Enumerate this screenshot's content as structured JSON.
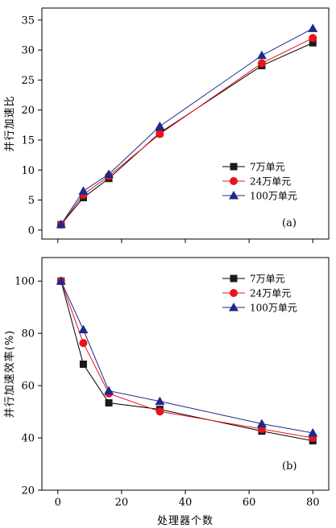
{
  "chart_data": [
    {
      "type": "line",
      "panel_label": "(a)",
      "ylabel": "并行加速比",
      "xlabel": "",
      "x": [
        1,
        8,
        16,
        32,
        64,
        80
      ],
      "xlim": [
        -5,
        85
      ],
      "ylim": [
        -1.5,
        37
      ],
      "xticks": [
        0,
        20,
        40,
        60,
        80
      ],
      "xtick_labels": [
        "",
        "",
        "",
        "",
        ""
      ],
      "yticks": [
        0,
        5,
        10,
        15,
        20,
        25,
        30,
        35
      ],
      "ytick_labels": [
        "0",
        "5",
        "10",
        "15",
        "20",
        "25",
        "30",
        "35"
      ],
      "legend_position": "bottom-right",
      "series": [
        {
          "name": "7万单元",
          "marker": "square",
          "color": "#000000",
          "markerColor": "#1a1a1a",
          "values": [
            0.9,
            5.4,
            8.6,
            16.2,
            27.4,
            31.2
          ]
        },
        {
          "name": "24万单元",
          "marker": "circle",
          "color": "#e8141b",
          "markerColor": "#e8141b",
          "values": [
            0.9,
            5.9,
            9.0,
            16.0,
            27.8,
            32.0
          ]
        },
        {
          "name": "100万单元",
          "marker": "triangle",
          "color": "#1c2a8c",
          "markerColor": "#1c2a8c",
          "values": [
            0.95,
            6.5,
            9.3,
            17.3,
            29.1,
            33.6
          ]
        }
      ]
    },
    {
      "type": "line",
      "panel_label": "(b)",
      "ylabel": "并行加速效率(%)",
      "xlabel": "处理器个数",
      "x": [
        1,
        8,
        16,
        32,
        64,
        80
      ],
      "xlim": [
        -5,
        85
      ],
      "ylim": [
        20,
        109
      ],
      "xticks": [
        0,
        20,
        40,
        60,
        80
      ],
      "xtick_labels": [
        "0",
        "20",
        "40",
        "60",
        "80"
      ],
      "yticks": [
        20,
        40,
        60,
        80,
        100
      ],
      "ytick_labels": [
        "20",
        "40",
        "60",
        "80",
        "100"
      ],
      "legend_position": "top-right",
      "series": [
        {
          "name": "7万单元",
          "marker": "square",
          "color": "#000000",
          "markerColor": "#1a1a1a",
          "values": [
            100,
            68.2,
            53.4,
            50.9,
            42.6,
            38.9
          ]
        },
        {
          "name": "24万单元",
          "marker": "circle",
          "color": "#e8141b",
          "markerColor": "#e8141b",
          "values": [
            100,
            76.3,
            57.0,
            50.1,
            43.4,
            40.0
          ]
        },
        {
          "name": "100万单元",
          "marker": "triangle",
          "color": "#1c2a8c",
          "markerColor": "#1c2a8c",
          "values": [
            100,
            81.4,
            58.0,
            54.0,
            45.4,
            41.9
          ]
        }
      ]
    }
  ]
}
